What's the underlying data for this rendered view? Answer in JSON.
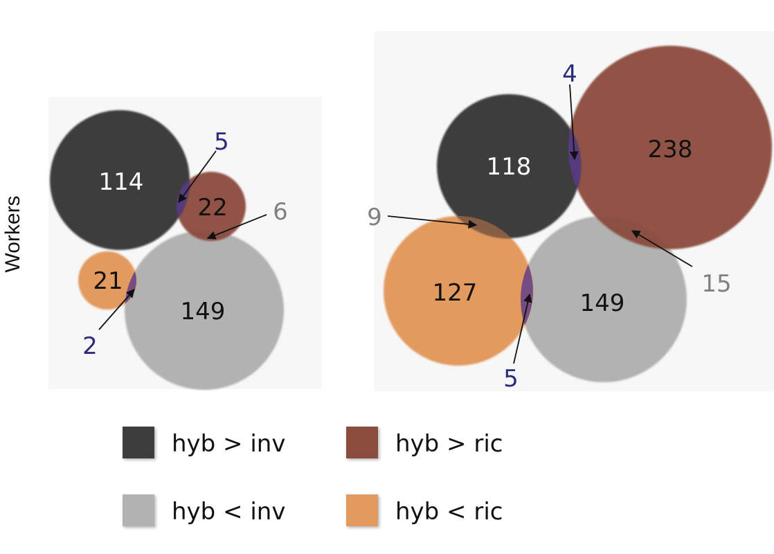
{
  "row_label": "Workers",
  "colors": {
    "hyb_gt_inv": "#3d3d3d",
    "hyb_gt_ric": "#8b4c3e",
    "hyb_lt_inv": "#b2b2b2",
    "hyb_lt_ric": "#e39a5e",
    "overlap": "#5b3a8a",
    "overlap_label": "#2c2a7a",
    "grey_label": "#808080",
    "white_text": "#ffffff",
    "dark_text": "#111111"
  },
  "legend": {
    "hyb_gt_inv": "hyb > inv",
    "hyb_gt_ric": "hyb > ric",
    "hyb_lt_inv": "hyb < inv",
    "hyb_lt_ric": "hyb < ric"
  },
  "panels": [
    {
      "sets": {
        "hyb_gt_inv": "114",
        "hyb_gt_ric": "22",
        "hyb_lt_inv": "149",
        "hyb_lt_ric": "21"
      },
      "overlaps": {
        "gt_inv_and_gt_ric": "5",
        "gt_ric_and_lt_inv": "6",
        "lt_ric_and_lt_inv": "2"
      }
    },
    {
      "sets": {
        "hyb_gt_inv": "118",
        "hyb_gt_ric": "238",
        "hyb_lt_inv": "149",
        "hyb_lt_ric": "127"
      },
      "overlaps": {
        "gt_inv_and_gt_ric": "4",
        "gt_inv_and_lt_ric": "9",
        "gt_ric_and_lt_inv": "15",
        "lt_ric_and_lt_inv": "5"
      }
    }
  ]
}
